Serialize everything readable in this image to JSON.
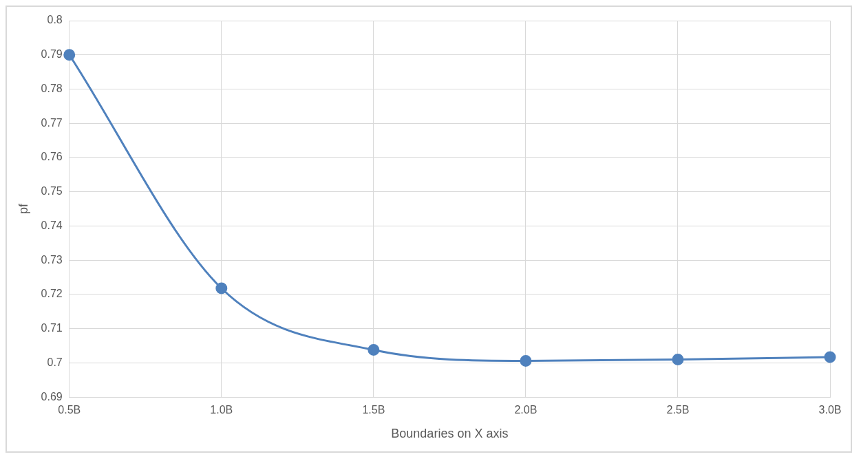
{
  "chart_data": {
    "type": "line",
    "xlabel": "Boundaries on X axis",
    "ylabel": "pf",
    "categories": [
      "0.5B",
      "1.0B",
      "1.5B",
      "2.0B",
      "2.5B",
      "3.0B"
    ],
    "series": [
      {
        "color": "#4f81bd",
        "values": [
          0.79,
          0.7218,
          0.7038,
          0.7006,
          0.701,
          0.7017
        ]
      }
    ],
    "ylim": [
      0.69,
      0.8
    ],
    "yticks": [
      0.69,
      0.7,
      0.71,
      0.72,
      0.73,
      0.74,
      0.75,
      0.76,
      0.77,
      0.78,
      0.79,
      0.8
    ],
    "grid": true,
    "legend": false,
    "marker": "circle",
    "line_style": "solid"
  }
}
